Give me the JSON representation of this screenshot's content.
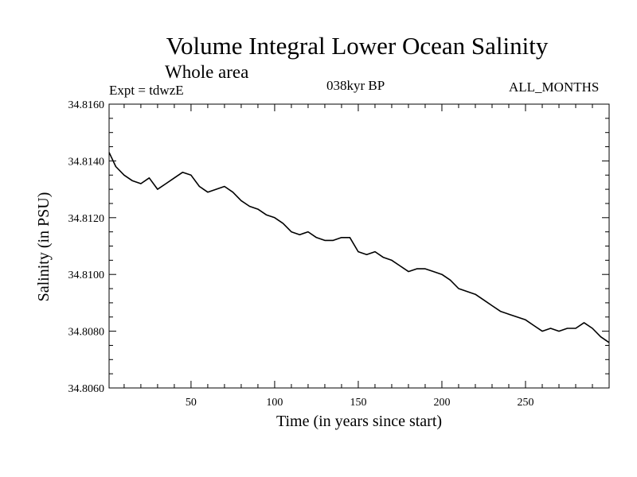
{
  "chart_data": {
    "type": "line",
    "title": "Volume Integral Lower Ocean Salinity",
    "subtitle": "Whole area",
    "experiment": "Expt = tdwzE",
    "period": "038kyr BP",
    "months": "ALL_MONTHS",
    "xlabel": "Time (in years since start)",
    "ylabel": "Salinity (in PSU)",
    "xlim": [
      1,
      300
    ],
    "ylim": [
      34.806,
      34.816
    ],
    "xticks": [
      50,
      100,
      150,
      200,
      250
    ],
    "xtick_labels": [
      "50",
      "100",
      "150",
      "200",
      "250"
    ],
    "yticks": [
      34.806,
      34.808,
      34.81,
      34.812,
      34.814,
      34.816
    ],
    "ytick_labels": [
      "34.8060",
      "34.8080",
      "34.8100",
      "34.8120",
      "34.8140",
      "34.8160"
    ],
    "grid": false,
    "series": [
      {
        "x": [
          1,
          5,
          10,
          15,
          20,
          25,
          30,
          35,
          40,
          45,
          50,
          55,
          60,
          65,
          70,
          75,
          80,
          85,
          90,
          95,
          100,
          105,
          110,
          115,
          120,
          125,
          130,
          135,
          140,
          145,
          150,
          155,
          160,
          165,
          170,
          175,
          180,
          185,
          190,
          195,
          200,
          205,
          210,
          215,
          220,
          225,
          230,
          235,
          240,
          245,
          250,
          255,
          260,
          265,
          270,
          275,
          280,
          285,
          290,
          295,
          300
        ],
        "y": [
          34.8143,
          34.8138,
          34.8135,
          34.8133,
          34.8132,
          34.8134,
          34.813,
          34.8132,
          34.8134,
          34.8136,
          34.8135,
          34.8131,
          34.8129,
          34.813,
          34.8131,
          34.8129,
          34.8126,
          34.8124,
          34.8123,
          34.8121,
          34.812,
          34.8118,
          34.8115,
          34.8114,
          34.8115,
          34.8113,
          34.8112,
          34.8112,
          34.8113,
          34.8113,
          34.8108,
          34.8107,
          34.8108,
          34.8106,
          34.8105,
          34.8103,
          34.8101,
          34.8102,
          34.8102,
          34.8101,
          34.81,
          34.8098,
          34.8095,
          34.8094,
          34.8093,
          34.8091,
          34.8089,
          34.8087,
          34.8086,
          34.8085,
          34.8084,
          34.8082,
          34.808,
          34.8081,
          34.808,
          34.8081,
          34.8081,
          34.8083,
          34.8081,
          34.8078,
          34.8076
        ]
      }
    ]
  }
}
